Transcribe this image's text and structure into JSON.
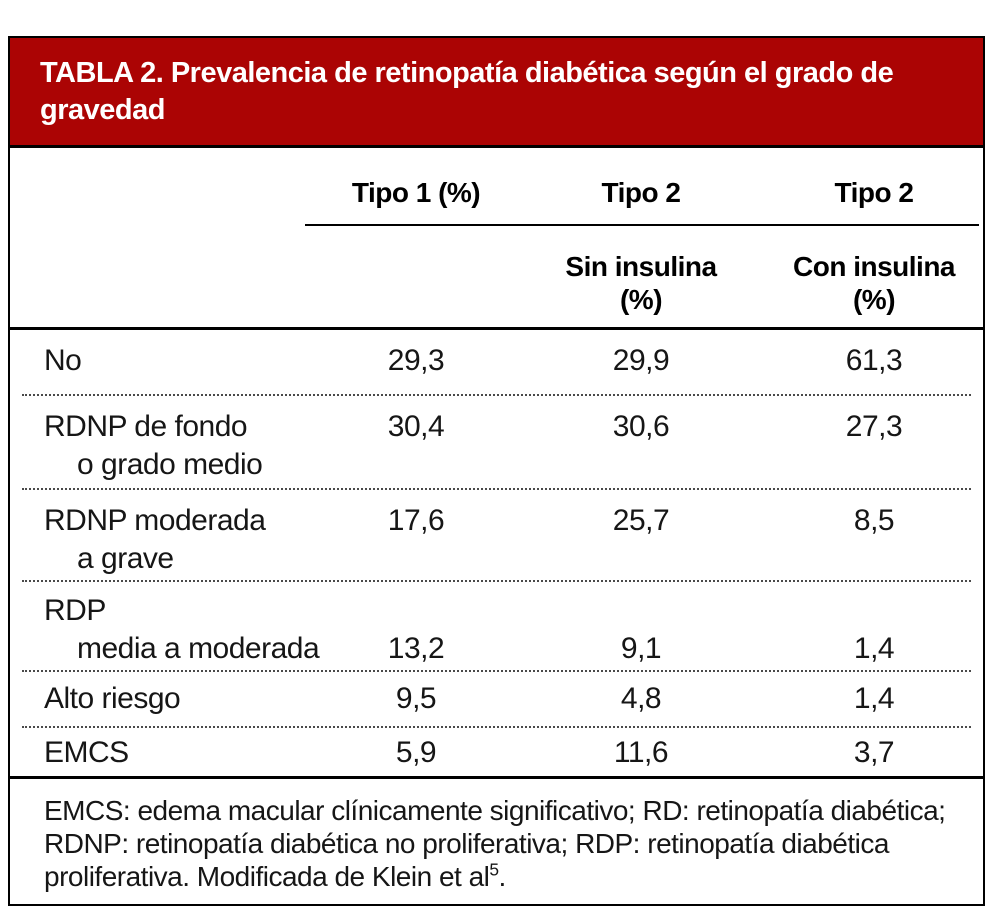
{
  "table": {
    "title_line1": "TABLA 2. Prevalencia de retinopatía diabética según el grado de",
    "title_line2": "gravedad",
    "header": {
      "col1": "Tipo 1 (%)",
      "col2": "Tipo 2",
      "col3": "Tipo 2",
      "sub2_line1": "Sin insulina",
      "sub2_line2": "(%)",
      "sub3_line1": "Con insulina",
      "sub3_line2": "(%)"
    },
    "rows": [
      {
        "label1": "No",
        "label2": "",
        "v1": "29,3",
        "v2": "29,9",
        "v3": "61,3"
      },
      {
        "label1": "RDNP de fondo",
        "label2": "o grado medio",
        "v1": "30,4",
        "v2": "30,6",
        "v3": "27,3"
      },
      {
        "label1": "RDNP moderada",
        "label2": "a grave",
        "v1": "17,6",
        "v2": "25,7",
        "v3": "8,5"
      },
      {
        "label1": "RDP",
        "label2": "media a moderada",
        "v1": "13,2",
        "v2": "9,1",
        "v3": "1,4"
      },
      {
        "label1": "Alto riesgo",
        "label2": "",
        "v1": "9,5",
        "v2": "4,8",
        "v3": "1,4"
      },
      {
        "label1": "EMCS",
        "label2": "",
        "v1": "5,9",
        "v2": "11,6",
        "v3": "3,7"
      }
    ],
    "footnote": {
      "line1": "EMCS: edema macular clínicamente significativo; RD: retinopatía diabética;",
      "line2": "RDNP: retinopatía diabética no proliferativa; RDP: retinopatía diabética",
      "line3_text": "proliferativa. Modificada de Klein et al",
      "line3_ref": "5",
      "line3_suffix": "."
    },
    "colors": {
      "header_bg": "#AB0404",
      "border": "#000000",
      "title_text": "#FFFFFF",
      "body_text": "#161616"
    }
  }
}
